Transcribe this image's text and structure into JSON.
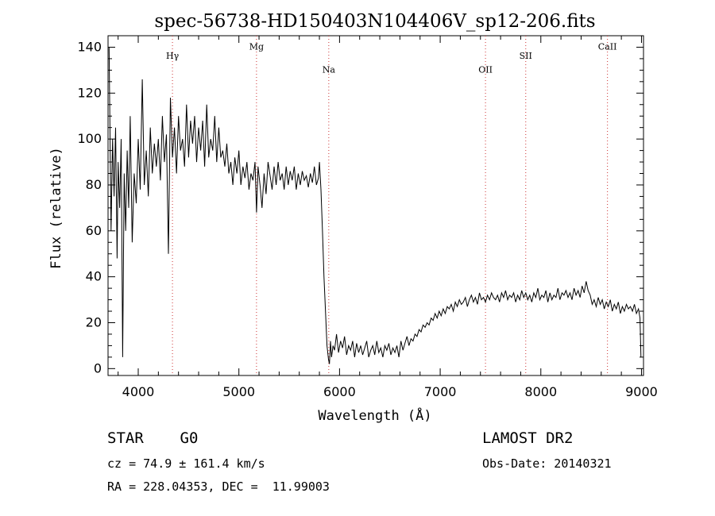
{
  "chart_data": {
    "type": "line",
    "title": "spec-56738-HD150403N104406V_sp12-206.fits",
    "xlabel": "Wavelength (Å)",
    "ylabel": "Flux (relative)",
    "xlim": [
      3700,
      9020
    ],
    "ylim": [
      -3,
      145
    ],
    "x_ticks": [
      4000,
      5000,
      6000,
      7000,
      8000,
      9000
    ],
    "x_tick_labels": [
      "4000",
      "5000",
      "6000",
      "7000",
      "8000",
      "9000"
    ],
    "y_ticks": [
      0,
      20,
      40,
      60,
      80,
      100,
      120,
      140
    ],
    "y_tick_labels": [
      "0",
      "20",
      "40",
      "60",
      "80",
      "100",
      "120",
      "140"
    ],
    "grid": false,
    "line_markers": [
      {
        "label": "Hγ",
        "x": 4340,
        "label_y": 135
      },
      {
        "label": "Mg",
        "x": 5175,
        "label_y": 139
      },
      {
        "label": "Na",
        "x": 5893,
        "label_y": 129
      },
      {
        "label": "OII",
        "x": 7450,
        "label_y": 129
      },
      {
        "label": "SII",
        "x": 7850,
        "label_y": 135
      },
      {
        "label": "CaII",
        "x": 8662,
        "label_y": 139
      }
    ],
    "series": [
      {
        "x": [
          3710,
          3730,
          3745,
          3760,
          3775,
          3790,
          3800,
          3815,
          3830,
          3845,
          3860,
          3875,
          3890,
          3905,
          3920,
          3940,
          3960,
          3980,
          4000,
          4020,
          4040,
          4060,
          4080,
          4100,
          4120,
          4140,
          4160,
          4180,
          4200,
          4220,
          4240,
          4260,
          4280,
          4300,
          4320,
          4340,
          4360,
          4380,
          4400,
          4420,
          4440,
          4460,
          4480,
          4500,
          4520,
          4540,
          4560,
          4580,
          4600,
          4620,
          4640,
          4660,
          4680,
          4700,
          4720,
          4740,
          4760,
          4780,
          4800,
          4820,
          4840,
          4860,
          4880,
          4900,
          4920,
          4940,
          4960,
          4980,
          5000,
          5020,
          5040,
          5060,
          5080,
          5100,
          5120,
          5140,
          5160,
          5175,
          5190,
          5210,
          5230,
          5250,
          5270,
          5290,
          5310,
          5330,
          5350,
          5370,
          5390,
          5410,
          5430,
          5450,
          5470,
          5490,
          5510,
          5530,
          5550,
          5570,
          5590,
          5610,
          5630,
          5650,
          5670,
          5690,
          5710,
          5730,
          5750,
          5770,
          5790,
          5800,
          5815,
          5830,
          5845,
          5860,
          5875,
          5890,
          5900,
          5910,
          5920,
          5935,
          5950,
          5970,
          5990,
          6010,
          6030,
          6050,
          6070,
          6090,
          6110,
          6130,
          6150,
          6170,
          6190,
          6210,
          6230,
          6250,
          6270,
          6290,
          6310,
          6330,
          6350,
          6370,
          6390,
          6410,
          6430,
          6450,
          6470,
          6490,
          6510,
          6530,
          6550,
          6570,
          6590,
          6610,
          6630,
          6650,
          6670,
          6690,
          6710,
          6730,
          6750,
          6770,
          6790,
          6810,
          6830,
          6850,
          6870,
          6890,
          6910,
          6930,
          6950,
          6970,
          6990,
          7010,
          7030,
          7050,
          7070,
          7090,
          7110,
          7130,
          7150,
          7170,
          7190,
          7210,
          7230,
          7250,
          7270,
          7290,
          7310,
          7330,
          7350,
          7370,
          7390,
          7410,
          7430,
          7450,
          7470,
          7490,
          7510,
          7530,
          7550,
          7570,
          7590,
          7610,
          7630,
          7650,
          7670,
          7690,
          7710,
          7730,
          7750,
          7770,
          7790,
          7810,
          7830,
          7850,
          7870,
          7890,
          7910,
          7930,
          7950,
          7970,
          7990,
          8010,
          8030,
          8050,
          8070,
          8090,
          8110,
          8130,
          8150,
          8170,
          8190,
          8210,
          8230,
          8250,
          8270,
          8290,
          8310,
          8330,
          8350,
          8370,
          8390,
          8410,
          8430,
          8450,
          8470,
          8490,
          8510,
          8530,
          8550,
          8570,
          8590,
          8610,
          8630,
          8650,
          8670,
          8690,
          8710,
          8730,
          8750,
          8770,
          8790,
          8810,
          8830,
          8850,
          8870,
          8890,
          8910,
          8930,
          8950,
          8970,
          8985,
          8995
        ],
        "y": [
          140,
          60,
          100,
          75,
          105,
          48,
          90,
          70,
          100,
          5,
          85,
          60,
          95,
          70,
          110,
          55,
          85,
          72,
          100,
          78,
          126,
          80,
          95,
          75,
          105,
          85,
          98,
          88,
          100,
          82,
          110,
          90,
          102,
          50,
          118,
          92,
          105,
          85,
          110,
          95,
          100,
          88,
          115,
          92,
          108,
          98,
          110,
          90,
          105,
          95,
          108,
          88,
          115,
          92,
          100,
          95,
          110,
          90,
          105,
          92,
          95,
          88,
          98,
          85,
          90,
          80,
          92,
          85,
          95,
          80,
          88,
          83,
          90,
          78,
          85,
          82,
          90,
          68,
          88,
          80,
          70,
          85,
          76,
          90,
          84,
          78,
          88,
          80,
          90,
          82,
          85,
          78,
          88,
          80,
          86,
          82,
          88,
          78,
          85,
          80,
          86,
          82,
          84,
          79,
          85,
          81,
          88,
          80,
          83,
          90,
          78,
          60,
          40,
          25,
          10,
          4,
          2,
          12,
          5,
          10,
          8,
          15,
          7,
          12,
          9,
          14,
          6,
          10,
          8,
          12,
          5,
          11,
          7,
          10,
          6,
          9,
          12,
          5,
          8,
          10,
          6,
          12,
          7,
          9,
          5,
          10,
          8,
          11,
          6,
          9,
          7,
          10,
          5,
          12,
          8,
          11,
          14,
          10,
          13,
          12,
          15,
          14,
          17,
          16,
          19,
          18,
          20,
          19,
          22,
          21,
          24,
          22,
          25,
          23,
          26,
          24,
          27,
          26,
          28,
          25,
          29,
          27,
          30,
          28,
          29,
          31,
          27,
          30,
          32,
          29,
          31,
          28,
          33,
          30,
          31,
          29,
          32,
          30,
          33,
          31,
          30,
          32,
          29,
          33,
          31,
          34,
          30,
          32,
          31,
          33,
          29,
          32,
          30,
          34,
          31,
          33,
          30,
          32,
          29,
          33,
          31,
          35,
          30,
          32,
          31,
          34,
          29,
          33,
          30,
          32,
          31,
          35,
          30,
          33,
          32,
          34,
          31,
          33,
          30,
          35,
          32,
          34,
          31,
          36,
          33,
          38,
          34,
          32,
          28,
          30,
          27,
          31,
          28,
          30,
          26,
          29,
          27,
          30,
          25,
          28,
          26,
          29,
          24,
          27,
          25,
          28,
          26,
          27,
          25,
          28,
          24,
          26,
          22,
          5
        ]
      }
    ]
  },
  "info": {
    "object_class": "STAR    G0",
    "velocity": "cz = 74.9 ± 161.4 km/s",
    "coords": "RA = 228.04353, DEC =  11.99003",
    "survey": "LAMOST DR2",
    "obs_date": "Obs-Date: 20140321"
  }
}
